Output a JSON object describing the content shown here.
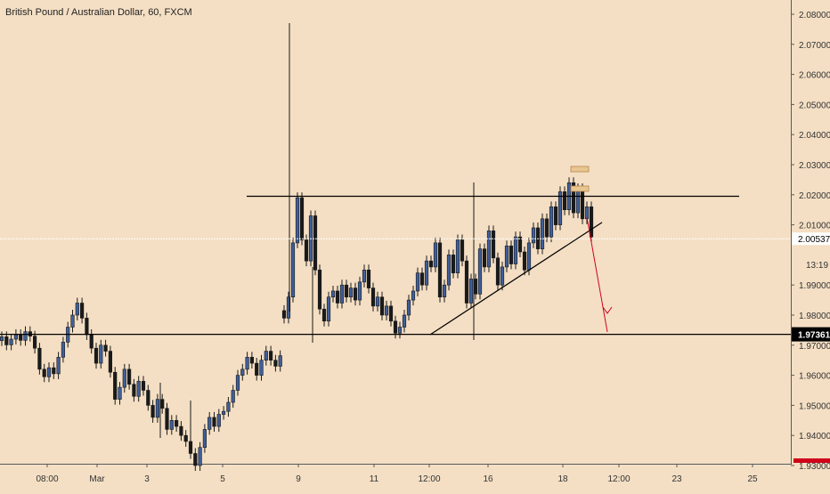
{
  "header": {
    "title": "British Pound / Australian Dollar, 60, FXCM"
  },
  "colors": {
    "background": "#f4dfc4",
    "candle_up": "#3f5f9a",
    "candle_down": "#1a1a1a",
    "level_line": "#000000",
    "current_price_line": "#ffffff",
    "projection_arrow": "#d0021b",
    "price_tag_bg": "#000000",
    "price_tag_text": "#ffffff",
    "zone_fill": "#e8c690",
    "zone_stroke": "#b8864a",
    "axis_text": "#333333",
    "scrollbar_marker": "#d0021b"
  },
  "price_axis": {
    "ticks": [
      "2.08000",
      "2.07000",
      "2.06000",
      "2.05000",
      "2.04000",
      "2.03000",
      "2.02000",
      "2.01000",
      "1.99000",
      "1.98000",
      "1.97000",
      "1.96000",
      "1.95000",
      "1.94000",
      "1.93000"
    ],
    "partial_tick": "2",
    "current_price": "2.00537",
    "countdown": "13:19",
    "level_tag": "1.97361"
  },
  "time_axis": {
    "ticks": [
      "08:00",
      "Mar",
      "3",
      "5",
      "9",
      "11",
      "12:00",
      "16",
      "18",
      "12:00",
      "23",
      "25"
    ]
  },
  "chart_data": {
    "type": "candlestick",
    "title": "British Pound / Australian Dollar, 60, FXCM",
    "ylim": [
      1.9205,
      2.0845
    ],
    "key_levels": {
      "resistance": 2.0195,
      "support": 1.97361,
      "current_price": 2.00537
    },
    "trendline": {
      "from_price": 1.9735,
      "to_price": 2.0108
    },
    "projection_target": 1.9738,
    "candles": [
      [
        1.9715,
        1.9728
      ],
      [
        1.9728,
        1.9701
      ],
      [
        1.9701,
        1.972
      ],
      [
        1.972,
        1.9735
      ],
      [
        1.9735,
        1.9716
      ],
      [
        1.9716,
        1.9745
      ],
      [
        1.9745,
        1.973
      ],
      [
        1.973,
        1.969
      ],
      [
        1.969,
        1.962
      ],
      [
        1.962,
        1.9595
      ],
      [
        1.9595,
        1.9625
      ],
      [
        1.9625,
        1.9605
      ],
      [
        1.9605,
        1.966
      ],
      [
        1.966,
        1.971
      ],
      [
        1.971,
        1.976
      ],
      [
        1.976,
        1.98
      ],
      [
        1.98,
        1.984
      ],
      [
        1.984,
        1.979
      ],
      [
        1.979,
        1.9735
      ],
      [
        1.9735,
        1.969
      ],
      [
        1.969,
        1.964
      ],
      [
        1.964,
        1.97
      ],
      [
        1.97,
        1.968
      ],
      [
        1.968,
        1.961
      ],
      [
        1.961,
        1.952
      ],
      [
        1.952,
        1.956
      ],
      [
        1.956,
        1.962
      ],
      [
        1.962,
        1.957
      ],
      [
        1.957,
        1.953
      ],
      [
        1.953,
        1.958
      ],
      [
        1.958,
        1.955
      ],
      [
        1.955,
        1.95
      ],
      [
        1.95,
        1.946
      ],
      [
        1.946,
        1.952
      ],
      [
        1.952,
        1.949
      ],
      [
        1.949,
        1.942
      ],
      [
        1.942,
        1.945
      ],
      [
        1.945,
        1.943
      ],
      [
        1.943,
        1.94
      ],
      [
        1.94,
        1.938
      ],
      [
        1.938,
        1.934
      ],
      [
        1.934,
        1.93
      ],
      [
        1.93,
        1.936
      ],
      [
        1.936,
        1.942
      ],
      [
        1.942,
        1.946
      ],
      [
        1.946,
        1.943
      ],
      [
        1.943,
        1.947
      ],
      [
        1.947,
        1.948
      ],
      [
        1.948,
        1.951
      ],
      [
        1.951,
        1.955
      ],
      [
        1.955,
        1.96
      ],
      [
        1.96,
        1.962
      ],
      [
        1.962,
        1.966
      ],
      [
        1.966,
        1.964
      ],
      [
        1.964,
        1.96
      ],
      [
        1.96,
        1.965
      ],
      [
        1.965,
        1.968
      ],
      [
        1.968,
        1.965
      ],
      [
        1.965,
        1.963
      ],
      [
        1.963,
        1.9665
      ],
      [
        1.9815,
        1.979
      ],
      [
        1.979,
        1.986
      ],
      [
        1.986,
        2.004
      ],
      [
        2.004,
        2.019
      ],
      [
        2.019,
        2.005
      ],
      [
        2.005,
        1.998
      ],
      [
        1.998,
        2.013
      ],
      [
        2.013,
        1.995
      ],
      [
        1.995,
        1.982
      ],
      [
        1.982,
        1.978
      ],
      [
        1.978,
        1.986
      ],
      [
        1.986,
        1.988
      ],
      [
        1.988,
        1.984
      ],
      [
        1.984,
        1.99
      ],
      [
        1.99,
        1.986
      ],
      [
        1.986,
        1.989
      ],
      [
        1.989,
        1.985
      ],
      [
        1.985,
        1.991
      ],
      [
        1.991,
        1.995
      ],
      [
        1.995,
        1.989
      ],
      [
        1.989,
        1.983
      ],
      [
        1.983,
        1.986
      ],
      [
        1.986,
        1.98
      ],
      [
        1.98,
        1.983
      ],
      [
        1.983,
        1.978
      ],
      [
        1.978,
        1.974
      ],
      [
        1.974,
        1.976
      ],
      [
        1.976,
        1.98
      ],
      [
        1.98,
        1.985
      ],
      [
        1.985,
        1.988
      ],
      [
        1.988,
        1.994
      ],
      [
        1.994,
        1.99
      ],
      [
        1.99,
        1.998
      ],
      [
        1.998,
        1.996
      ],
      [
        1.996,
        2.004
      ],
      [
        2.004,
        1.986
      ],
      [
        1.986,
        1.99
      ],
      [
        1.99,
        2.0
      ],
      [
        2.0,
        1.994
      ],
      [
        1.994,
        2.005
      ],
      [
        2.005,
        1.998
      ],
      [
        1.998,
        1.984
      ],
      [
        1.984,
        1.992
      ],
      [
        1.992,
        1.987
      ],
      [
        1.987,
        2.002
      ],
      [
        2.002,
        1.996
      ],
      [
        1.996,
        2.008
      ],
      [
        2.008,
        1.999
      ],
      [
        1.999,
        1.99
      ],
      [
        1.99,
        1.996
      ],
      [
        1.996,
        2.003
      ],
      [
        2.003,
        1.997
      ],
      [
        1.997,
        2.006
      ],
      [
        2.006,
        2.001
      ],
      [
        2.001,
        1.995
      ],
      [
        1.995,
        2.004
      ],
      [
        2.004,
        2.009
      ],
      [
        2.009,
        2.002
      ],
      [
        2.002,
        2.012
      ],
      [
        2.012,
        2.006
      ],
      [
        2.006,
        2.016
      ],
      [
        2.016,
        2.01
      ],
      [
        2.01,
        2.021
      ],
      [
        2.021,
        2.015
      ],
      [
        2.015,
        2.024
      ],
      [
        2.024,
        2.014
      ],
      [
        2.014,
        2.022
      ],
      [
        2.022,
        2.012
      ],
      [
        2.012,
        2.016
      ],
      [
        2.016,
        2.006
      ]
    ]
  }
}
